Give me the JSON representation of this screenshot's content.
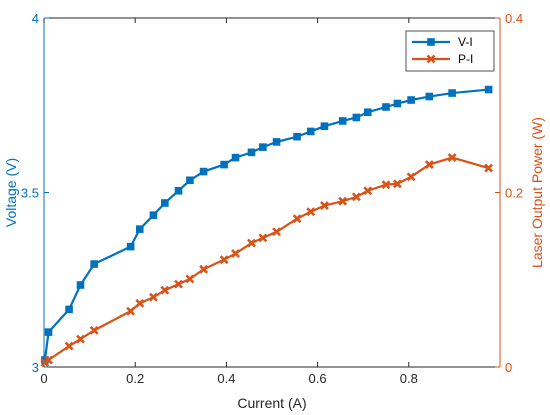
{
  "chart_data": {
    "type": "line",
    "xlabel": "Current (A)",
    "ylabel_left": "Voltage (V)",
    "ylabel_right": "Laser Output Power (W)",
    "xlim": [
      0,
      1
    ],
    "ylim_left": [
      3,
      4
    ],
    "ylim_right": [
      0,
      0.4
    ],
    "xticks": [
      0,
      0.2,
      0.4,
      0.6,
      0.8
    ],
    "xtick_labels": [
      "0",
      "0.2",
      "0.4",
      "0.6",
      "0.8"
    ],
    "yticks_left": [
      3,
      3.5,
      4
    ],
    "ytick_labels_left": [
      "3",
      "3.5",
      "4"
    ],
    "yticks_right": [
      0,
      0.2,
      0.4
    ],
    "ytick_labels_right": [
      "0",
      "0.2",
      "0.4"
    ],
    "grid": false,
    "legend_placement": "top-right",
    "series": [
      {
        "name": "V-I",
        "axis": "left",
        "color": "#0072BD",
        "marker": "square",
        "x": [
          0.002,
          0.01,
          0.055,
          0.08,
          0.11,
          0.19,
          0.21,
          0.24,
          0.265,
          0.295,
          0.32,
          0.35,
          0.395,
          0.42,
          0.455,
          0.48,
          0.51,
          0.555,
          0.585,
          0.615,
          0.655,
          0.685,
          0.71,
          0.75,
          0.775,
          0.805,
          0.845,
          0.895,
          0.975
        ],
        "y": [
          3.02,
          3.1,
          3.165,
          3.235,
          3.295,
          3.345,
          3.395,
          3.435,
          3.47,
          3.505,
          3.535,
          3.56,
          3.58,
          3.6,
          3.615,
          3.63,
          3.645,
          3.66,
          3.675,
          3.69,
          3.705,
          3.715,
          3.73,
          3.745,
          3.755,
          3.765,
          3.775,
          3.785,
          3.795
        ]
      },
      {
        "name": "P-I",
        "axis": "right",
        "color": "#D95319",
        "marker": "x-filled",
        "x": [
          0.002,
          0.01,
          0.055,
          0.08,
          0.11,
          0.19,
          0.21,
          0.24,
          0.265,
          0.295,
          0.32,
          0.35,
          0.395,
          0.42,
          0.455,
          0.48,
          0.51,
          0.555,
          0.585,
          0.615,
          0.655,
          0.685,
          0.71,
          0.75,
          0.775,
          0.805,
          0.845,
          0.895,
          0.975
        ],
        "y": [
          0.005,
          0.008,
          0.024,
          0.032,
          0.042,
          0.064,
          0.073,
          0.08,
          0.088,
          0.095,
          0.101,
          0.112,
          0.123,
          0.13,
          0.142,
          0.148,
          0.155,
          0.17,
          0.178,
          0.185,
          0.19,
          0.195,
          0.202,
          0.209,
          0.21,
          0.218,
          0.232,
          0.24,
          0.228
        ]
      }
    ]
  }
}
